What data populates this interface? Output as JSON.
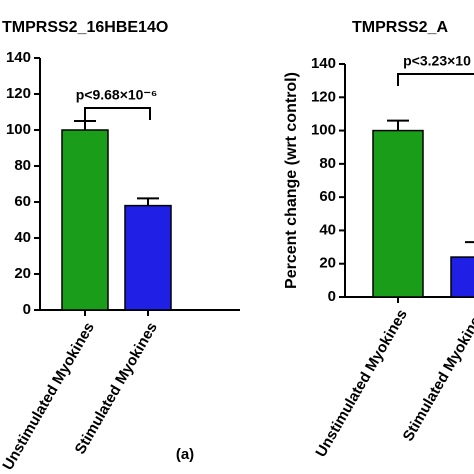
{
  "chart_data": [
    {
      "type": "bar",
      "title": "TMPRSS2_16HBE14O",
      "categories": [
        "Unstimulated Myokines",
        "Stimulated Myokines"
      ],
      "values": [
        100,
        58
      ],
      "errors": [
        5,
        4
      ],
      "colors": [
        "#1a9e1a",
        "#1f1fe6"
      ],
      "ylim": [
        0,
        140
      ],
      "yticks": [
        0,
        20,
        40,
        60,
        80,
        100,
        120,
        140
      ],
      "annotation": "p<9.68×10⁻⁶",
      "caption": "(a)"
    },
    {
      "type": "bar",
      "title": "TMPRSS2_A",
      "ylabel": "Percent change (wrt control)",
      "categories": [
        "Unstimulated Myokines",
        "Stimulated Myokines"
      ],
      "values": [
        100,
        24
      ],
      "errors": [
        6,
        9
      ],
      "colors": [
        "#1a9e1a",
        "#1f1fe6"
      ],
      "ylim": [
        0,
        140
      ],
      "yticks": [
        0,
        20,
        40,
        60,
        80,
        100,
        120,
        140
      ],
      "annotation": "p<3.23×10"
    }
  ]
}
